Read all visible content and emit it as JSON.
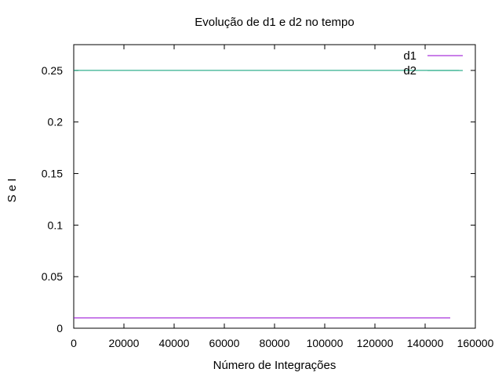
{
  "chart_data": {
    "type": "line",
    "title": "Evolução de d1 e d2 no tempo",
    "xlabel": "Número de Integrações",
    "ylabel": "S e I",
    "xlim": [
      0,
      160000
    ],
    "ylim": [
      0,
      0.275
    ],
    "xticks": [
      0,
      20000,
      40000,
      60000,
      80000,
      100000,
      120000,
      140000,
      160000
    ],
    "yticks": [
      0,
      0.05,
      0.1,
      0.15,
      0.2,
      0.25
    ],
    "grid": false,
    "legend_position": "top-right",
    "series": [
      {
        "name": "d1",
        "color": "#9400d3",
        "x": [
          0,
          150000
        ],
        "y": [
          0.01,
          0.01
        ]
      },
      {
        "name": "d2",
        "color": "#009e73",
        "x": [
          0,
          153500
        ],
        "y": [
          0.25,
          0.25
        ]
      }
    ]
  }
}
